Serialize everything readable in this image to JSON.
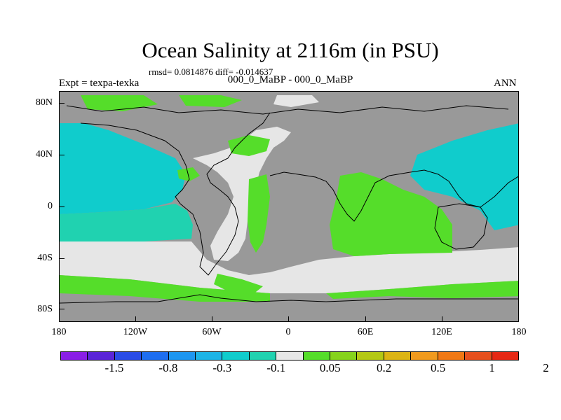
{
  "title": "Ocean Salinity at 2116m (in PSU)",
  "rmsd_text": "rmsd= 0.0814876 diff= -0.014637",
  "subtitle": "000_0_MaBP - 000_0_MaBP",
  "left_label": "Expt = texpa-texka",
  "right_label": "ANN",
  "colors": {
    "land": "#999999",
    "near_zero": "#e6e6e6",
    "green": "#55dd2a",
    "cyan": "#10cccc",
    "teal": "#20d2b0"
  },
  "axes": {
    "y_ticks": [
      "80N",
      "40N",
      "0",
      "40S",
      "80S"
    ],
    "x_ticks": [
      "180",
      "120W",
      "60W",
      "0",
      "60E",
      "120E",
      "180"
    ]
  },
  "colorbar": {
    "colors": [
      "#8a1ee6",
      "#5a24d8",
      "#2a4ce6",
      "#1e6ef0",
      "#1e96f0",
      "#1eb4e6",
      "#10cccc",
      "#20d2b0",
      "#e6e6e6",
      "#55dd2a",
      "#86d31c",
      "#b4c814",
      "#dcb414",
      "#f09a1e",
      "#f07814",
      "#e6501e",
      "#e62814"
    ],
    "labels": [
      "-1.5",
      "-0.8",
      "-0.3",
      "-0.1",
      "0.05",
      "0.2",
      "0.5",
      "1",
      "2"
    ]
  }
}
